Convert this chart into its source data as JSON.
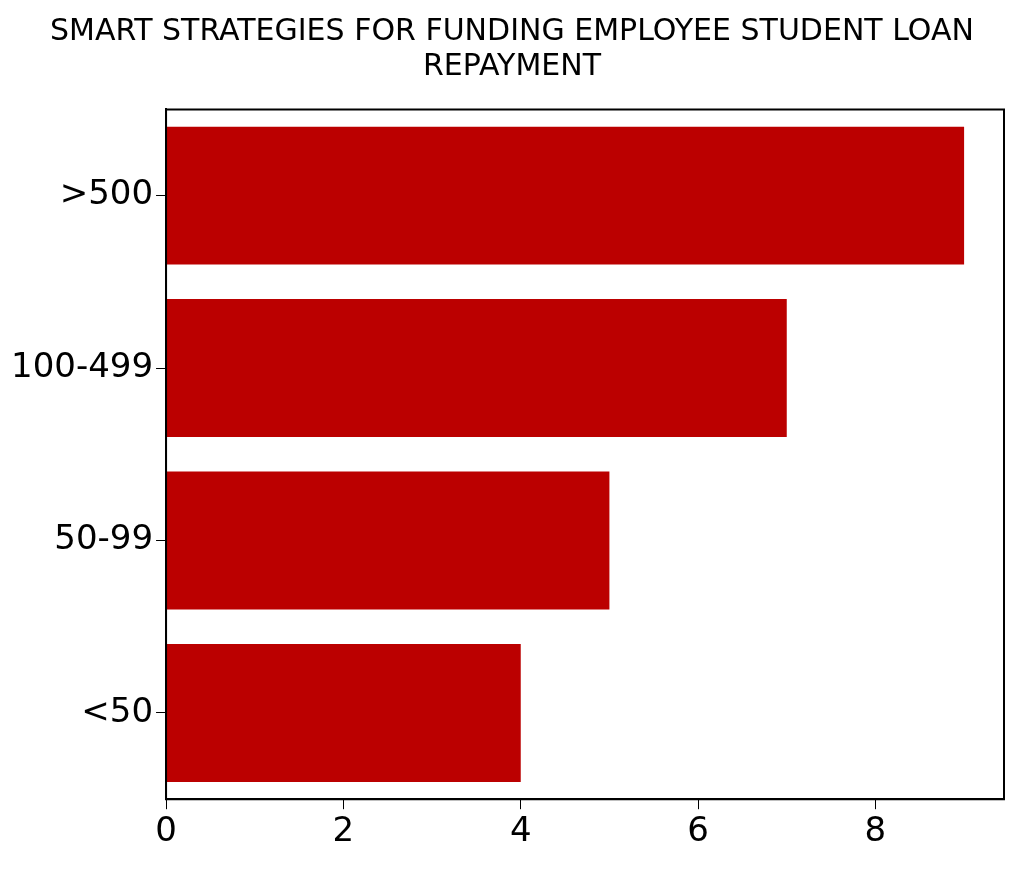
{
  "chart_data": {
    "type": "bar",
    "orientation": "horizontal",
    "title": "SMART STRATEGIES FOR FUNDING EMPLOYEE STUDENT LOAN REPAYMENT",
    "categories": [
      ">500",
      "100-499",
      "50-99",
      "<50"
    ],
    "values": [
      9,
      7,
      5,
      4
    ],
    "color": "#bb0000",
    "xlim": [
      0,
      9.45
    ],
    "xticks": [
      0,
      2,
      4,
      6,
      8
    ],
    "grid": false,
    "legend": false
  }
}
